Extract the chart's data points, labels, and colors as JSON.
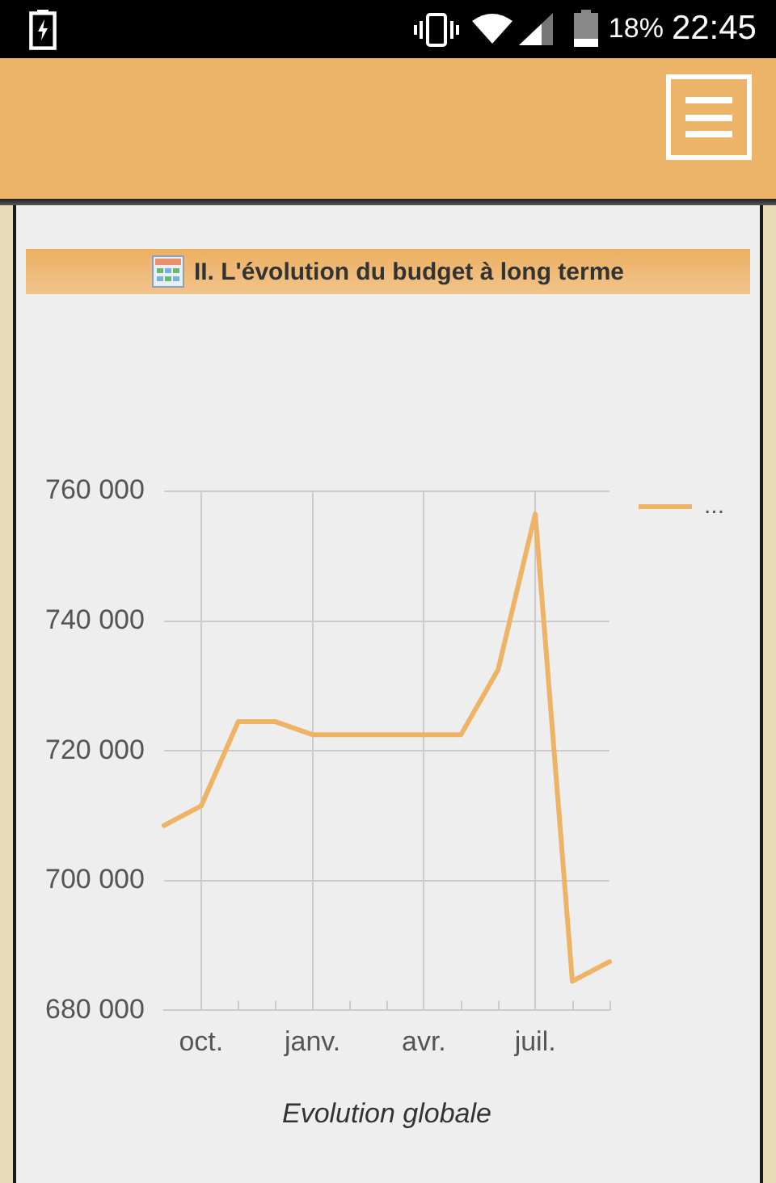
{
  "chart_data": {
    "type": "line",
    "title": "II. L'évolution du budget à long terme",
    "xlabel": "Evolution globale",
    "categories": [
      null,
      "oct.",
      null,
      null,
      "janv.",
      null,
      null,
      "avr.",
      null,
      null,
      "juil.",
      null,
      null
    ],
    "series": [
      {
        "name": "...",
        "color": "#efb366",
        "values": [
          708500,
          711500,
          724500,
          724500,
          722500,
          722500,
          722500,
          722500,
          722500,
          732500,
          756500,
          684500,
          687500
        ]
      }
    ],
    "ylim": [
      680000,
      760000
    ],
    "yticks": [
      {
        "value": 680000,
        "label": "680 000"
      },
      {
        "value": 700000,
        "label": "700 000"
      },
      {
        "value": 720000,
        "label": "720 000"
      },
      {
        "value": 740000,
        "label": "740 000"
      },
      {
        "value": 760000,
        "label": "760 000"
      }
    ],
    "grid": true,
    "legend": "top right",
    "marker": "none",
    "line_style": "solid",
    "annotations": [
      "18%",
      "22:45"
    ]
  }
}
